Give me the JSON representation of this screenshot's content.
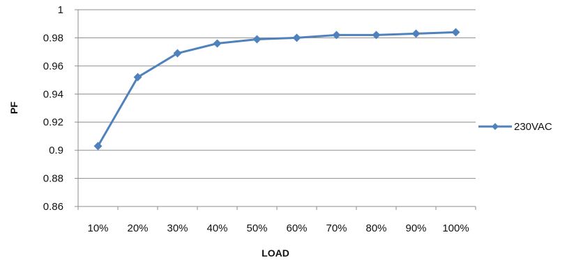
{
  "chart_data": {
    "type": "line",
    "categories": [
      "10%",
      "20%",
      "30%",
      "40%",
      "50%",
      "60%",
      "70%",
      "80%",
      "90%",
      "100%"
    ],
    "series": [
      {
        "name": "230VAC",
        "color": "#4f81bd",
        "marker": "diamond",
        "values": [
          0.903,
          0.952,
          0.969,
          0.976,
          0.979,
          0.98,
          0.982,
          0.982,
          0.983,
          0.984
        ]
      }
    ],
    "y_ticks": [
      "0.86",
      "0.88",
      "0.9",
      "0.92",
      "0.94",
      "0.96",
      "0.98",
      "1"
    ],
    "ylim": [
      0.86,
      1.0
    ],
    "xlabel": "LOAD",
    "ylabel": "PF",
    "grid": true,
    "legend_position": "right"
  }
}
